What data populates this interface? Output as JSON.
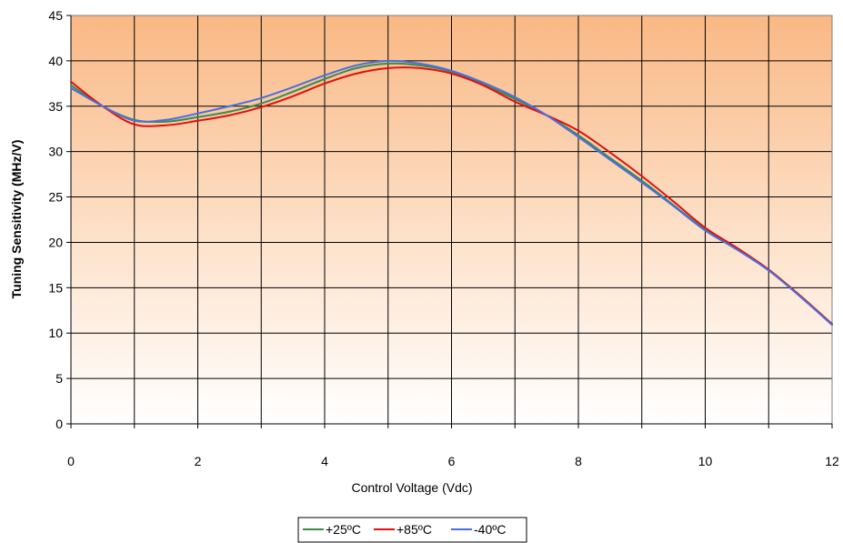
{
  "chart_data": {
    "type": "line",
    "title": "",
    "xlabel": "Control Voltage (Vdc)",
    "ylabel": "Tuning Sensitivity (MHz/V)",
    "xlim": [
      0,
      12
    ],
    "ylim": [
      0,
      45
    ],
    "x_ticks": [
      "0",
      "2",
      "4",
      "6",
      "8",
      "10",
      "12"
    ],
    "y_ticks": [
      "0",
      "5",
      "10",
      "15",
      "20",
      "25",
      "30",
      "35",
      "40",
      "45"
    ],
    "grid": true,
    "legend_position": "bottom-center",
    "background": "vertical gradient, orange at top fading to white at bottom",
    "x": [
      0,
      0.5,
      1,
      1.5,
      2,
      2.5,
      3,
      3.5,
      4,
      4.5,
      5,
      5.5,
      6,
      6.5,
      7,
      7.5,
      8,
      8.5,
      9,
      9.5,
      10,
      10.5,
      11,
      11.5,
      12
    ],
    "series": [
      {
        "name": "+25ºC",
        "color": "#3a8a4c",
        "values": [
          37.3,
          35.0,
          33.5,
          33.3,
          33.8,
          34.4,
          35.3,
          36.6,
          38.0,
          39.2,
          39.7,
          39.5,
          38.8,
          37.4,
          35.8,
          34.0,
          31.8,
          29.3,
          26.8,
          24.1,
          21.4,
          19.3,
          17.0,
          14.1,
          11.0
        ]
      },
      {
        "name": "+85ºC",
        "color": "#e01010",
        "values": [
          37.7,
          35.0,
          33.0,
          32.9,
          33.4,
          34.0,
          34.9,
          36.1,
          37.5,
          38.6,
          39.2,
          39.2,
          38.6,
          37.3,
          35.5,
          34.0,
          32.3,
          29.9,
          27.3,
          24.5,
          21.6,
          19.4,
          17.0,
          14.1,
          11.0
        ]
      },
      {
        "name": "-40ºC",
        "color": "#4a6fe0",
        "values": [
          37.0,
          35.0,
          33.4,
          33.5,
          34.2,
          35.0,
          35.9,
          37.1,
          38.4,
          39.5,
          40.0,
          39.7,
          38.9,
          37.6,
          36.0,
          34.0,
          31.6,
          29.1,
          26.6,
          24.0,
          21.3,
          19.2,
          16.9,
          14.0,
          10.9
        ]
      }
    ]
  }
}
